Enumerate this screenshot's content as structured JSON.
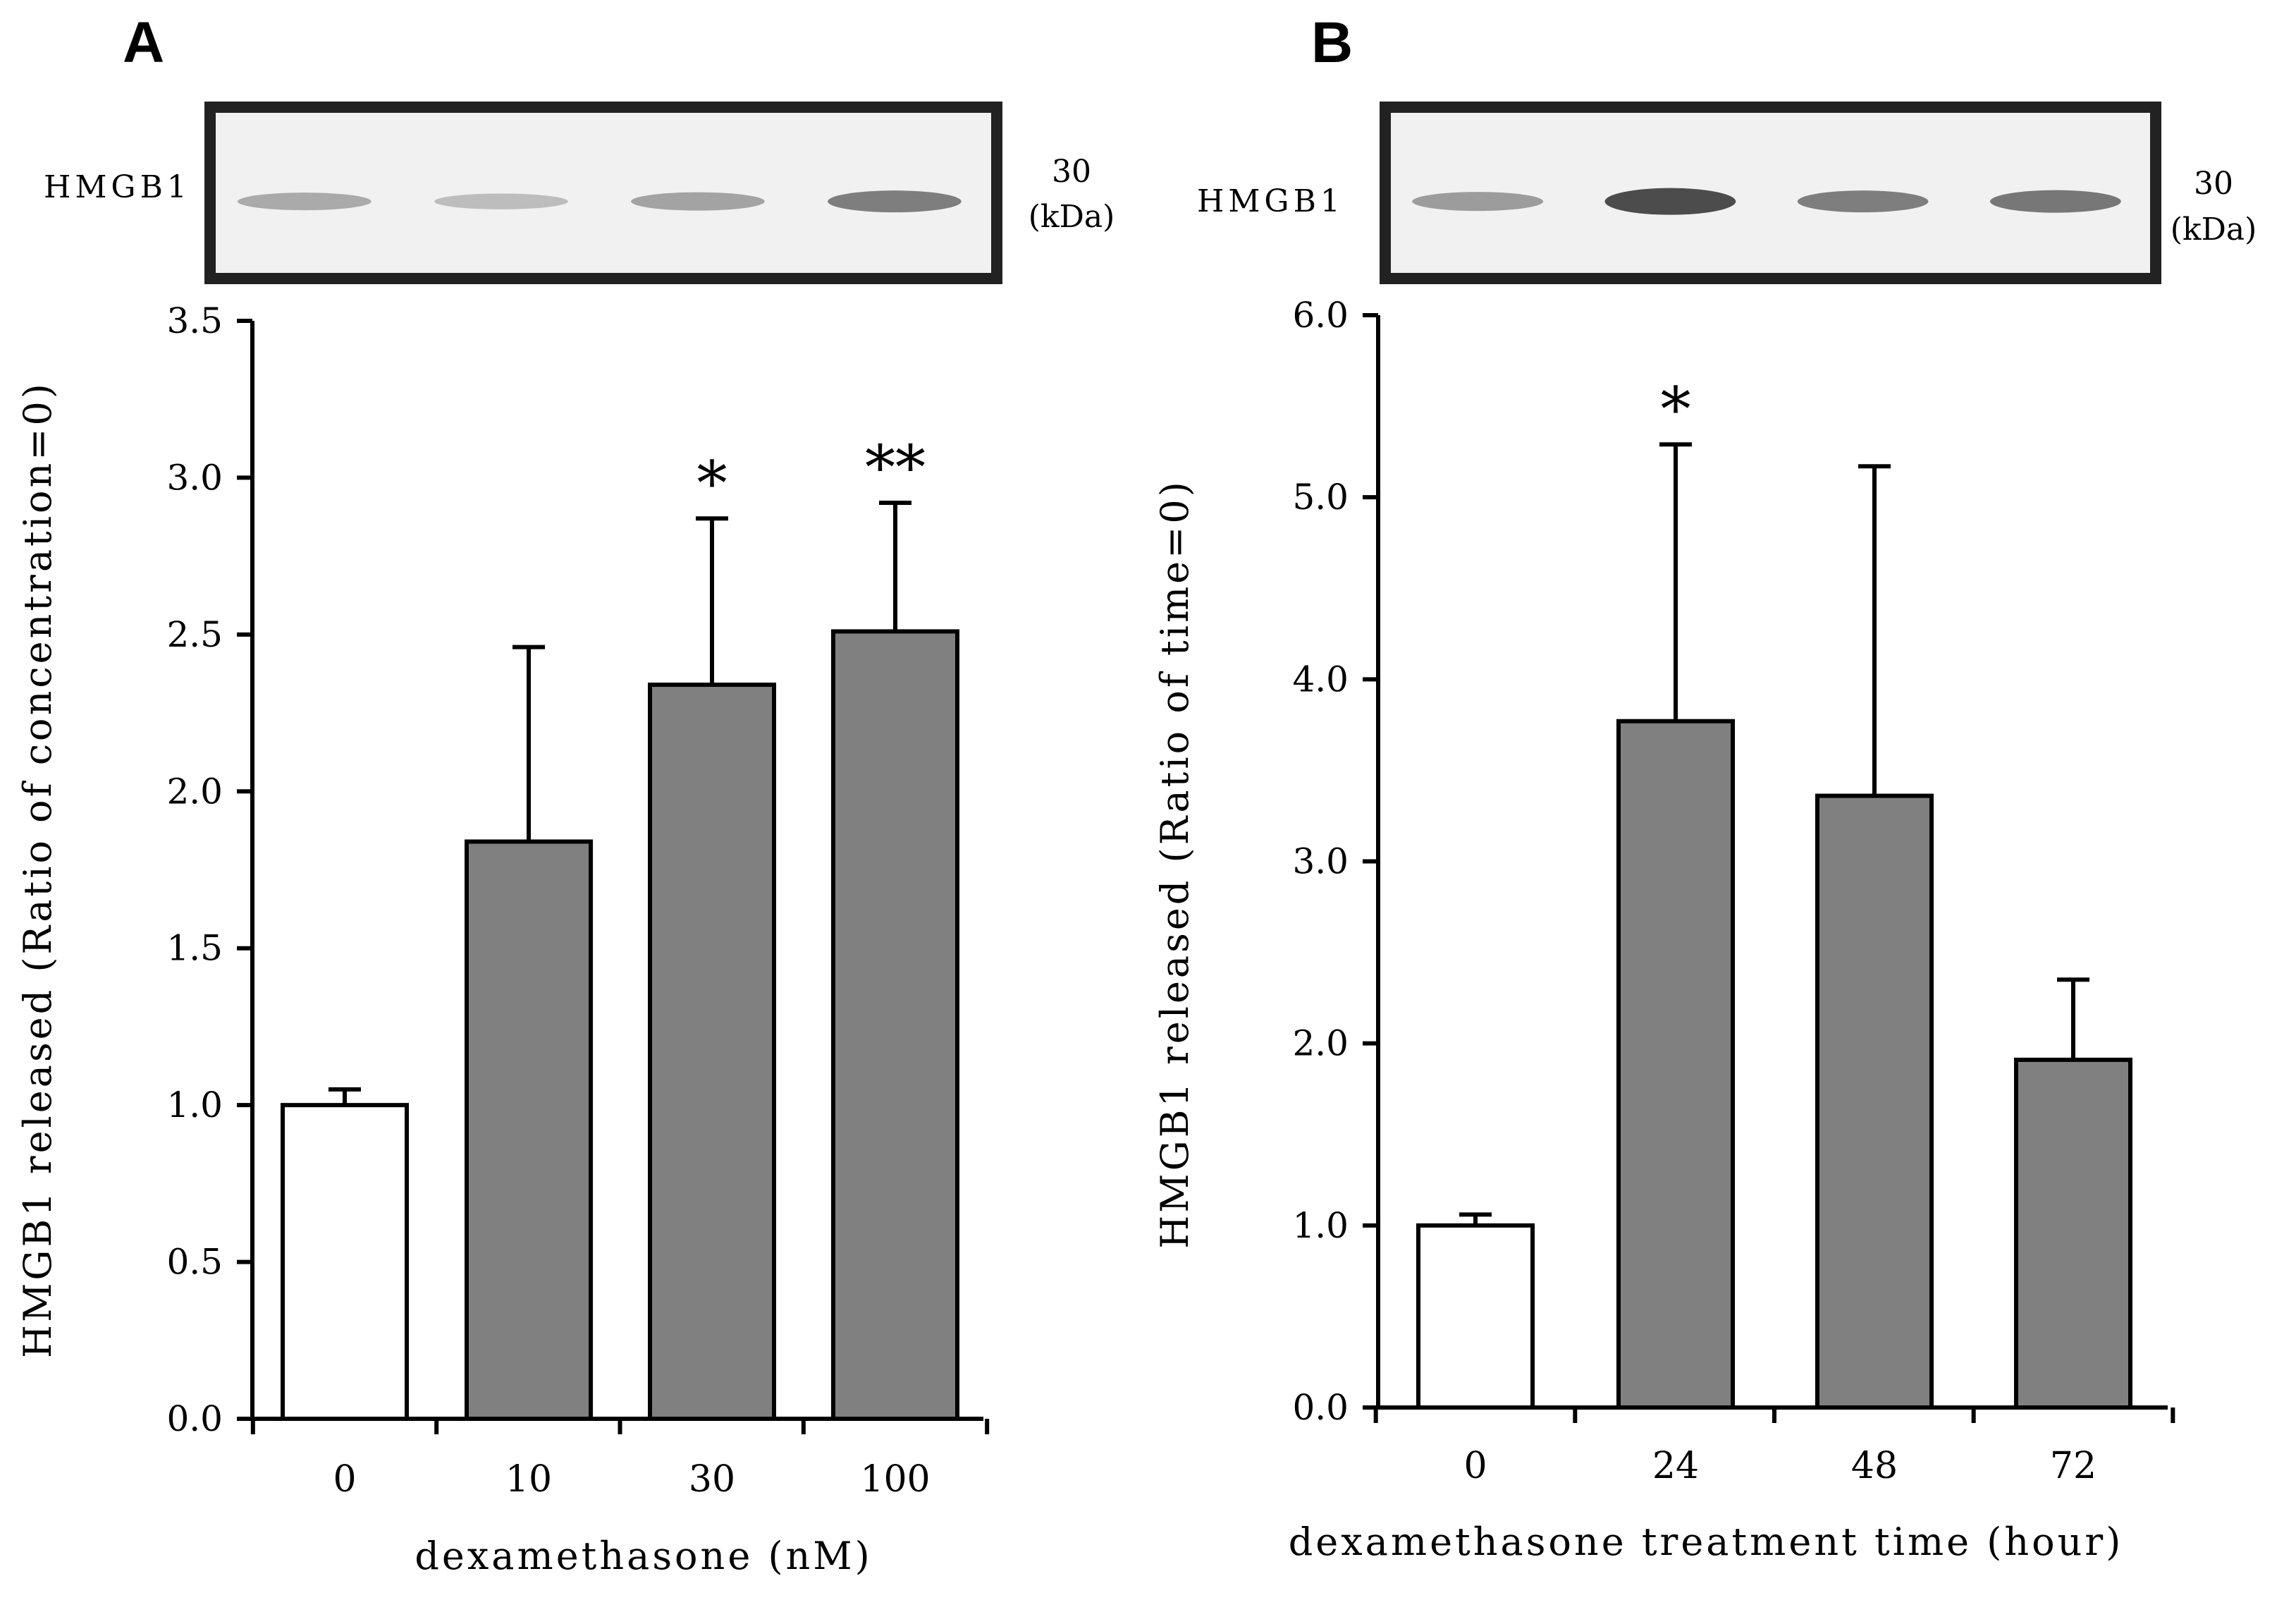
{
  "chart_data": [
    {
      "panel_label": "A",
      "type": "bar",
      "blot": {
        "protein_label": "HMGB1",
        "mw_value": "30",
        "mw_unit": "(kDa)",
        "band_intensity": [
          0.25,
          0.12,
          0.3,
          0.55
        ]
      },
      "categories": [
        "0",
        "10",
        "30",
        "100"
      ],
      "values": [
        1.0,
        1.84,
        2.34,
        2.51
      ],
      "errors": [
        0.05,
        0.62,
        0.53,
        0.41
      ],
      "significance": [
        "",
        "",
        "*",
        "**"
      ],
      "bar_colors": [
        "#ffffff",
        "#808080",
        "#808080",
        "#808080"
      ],
      "ylabel": "HMGB1 released (Ratio of concentration=0)",
      "xlabel": "dexamethasone (nM)",
      "ylim": [
        0,
        3.5
      ],
      "yticks": [
        0,
        0.5,
        1.0,
        1.5,
        2.0,
        2.5,
        3.0,
        3.5
      ],
      "ytick_labels": [
        "0.0",
        "0.5",
        "1.0",
        "1.5",
        "2.0",
        "2.5",
        "3.0",
        "3.5"
      ]
    },
    {
      "panel_label": "B",
      "type": "bar",
      "blot": {
        "protein_label": "HMGB1",
        "mw_value": "30",
        "mw_unit": "(kDa)",
        "band_intensity": [
          0.35,
          0.9,
          0.55,
          0.6
        ]
      },
      "categories": [
        "0",
        "24",
        "48",
        "72"
      ],
      "values": [
        1.0,
        3.77,
        3.36,
        1.91
      ],
      "errors": [
        0.06,
        1.52,
        1.81,
        0.44
      ],
      "significance": [
        "",
        "*",
        "",
        ""
      ],
      "bar_colors": [
        "#ffffff",
        "#808080",
        "#808080",
        "#808080"
      ],
      "ylabel": "HMGB1 released (Ratio of time=0)",
      "xlabel": "dexamethasone treatment time (hour)",
      "ylim": [
        0,
        6.0
      ],
      "yticks": [
        0,
        1.0,
        2.0,
        3.0,
        4.0,
        5.0,
        6.0
      ],
      "ytick_labels": [
        "0.0",
        "1.0",
        "2.0",
        "3.0",
        "4.0",
        "5.0",
        "6.0"
      ]
    }
  ]
}
